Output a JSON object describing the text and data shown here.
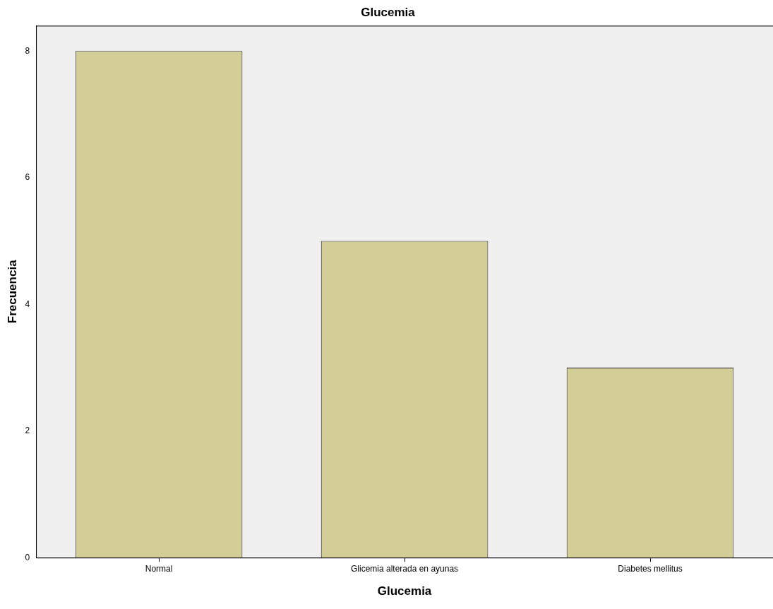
{
  "chart_data": {
    "type": "bar",
    "title": "Glucemia",
    "xlabel": "Glucemia",
    "ylabel": "Frecuencia",
    "categories": [
      "Normal",
      "Glicemia alterada en ayunas",
      "Diabetes mellitus"
    ],
    "values": [
      8,
      5,
      3
    ],
    "color": "#d3ce97",
    "ylim": [
      0,
      8.4
    ],
    "yticks": [
      0,
      2,
      4,
      6,
      8
    ],
    "grid": false,
    "legend": false
  }
}
